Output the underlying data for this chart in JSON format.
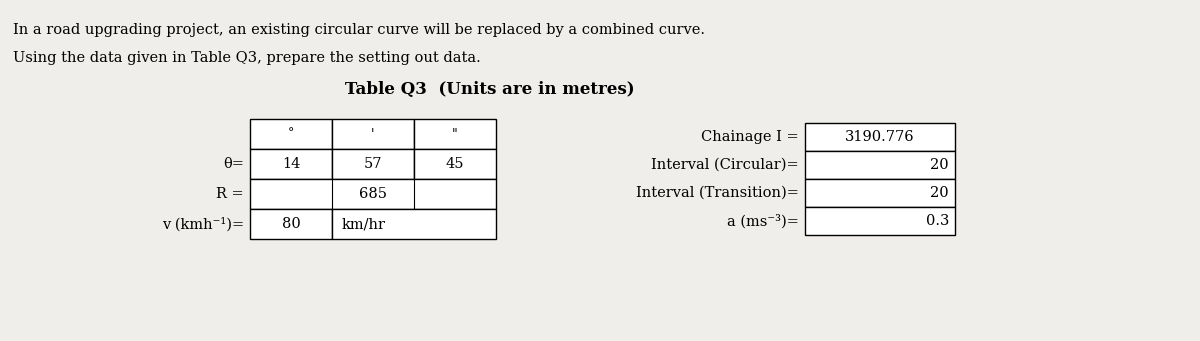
{
  "bg_color": "#f0eeea",
  "title_line1": "In a road upgrading project, an existing circular curve will be replaced by a combined curve.",
  "title_line2": "Using the data given in Table Q3, prepare the setting out data.",
  "table_title": "Table Q3  (Units are in metres)",
  "left_table": {
    "col_headers": [
      "°",
      "'",
      "\""
    ],
    "row_labels": [
      "θ=",
      "R =",
      "v (kmh⁻¹)="
    ],
    "theta_vals": [
      "14",
      "57",
      "45"
    ],
    "R_val": "685",
    "v_val": "80",
    "v_unit": "km/hr"
  },
  "right_table": {
    "labels": [
      "Chainage I =",
      "Interval (Circular)=",
      "Interval (Transition)=",
      "a (ms⁻³)="
    ],
    "values": [
      "3190.776",
      "20",
      "20",
      "0.3"
    ]
  },
  "font_size_text": 10.5,
  "font_size_table": 10.5,
  "font_size_title_table": 12
}
